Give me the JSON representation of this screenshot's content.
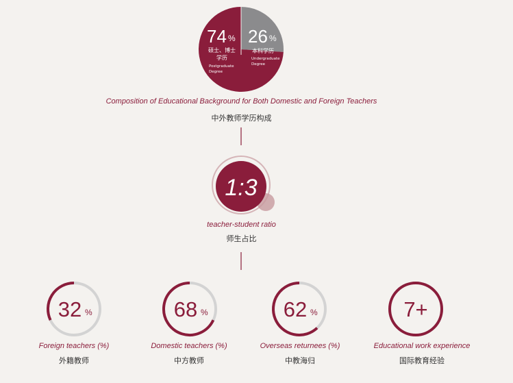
{
  "colors": {
    "accent": "#8a1d3b",
    "accent_light": "#c79a9f",
    "gray": "#8b8b8d",
    "ring_track": "#d3d3d3",
    "text": "#333333",
    "background": "#f4f2ef"
  },
  "chart_data": [
    {
      "type": "pie",
      "slices": [
        {
          "value": 74,
          "label": "74",
          "unit": "%",
          "name_zh": "硕士、博士学历",
          "name_en": "Postgraduate Degree",
          "color": "#8a1d3b"
        },
        {
          "value": 26,
          "label": "26",
          "unit": "%",
          "name_zh": "本科学历",
          "name_en": "Undergraduate Degree",
          "color": "#8b8b8d"
        }
      ],
      "caption_en": "Composition of Educational Background for Both Domestic and Foreign Teachers",
      "caption_zh": "中外教师学历构成"
    },
    {
      "type": "ratio",
      "value": "1:3",
      "caption_en": "teacher-student ratio",
      "caption_zh": "师生占比"
    },
    {
      "type": "gauge",
      "items": [
        {
          "value": 32,
          "label": "32",
          "unit": "%",
          "caption_en": "Foreign teachers (%)",
          "caption_zh": "外籍教师"
        },
        {
          "value": 68,
          "label": "68",
          "unit": "%",
          "caption_en": "Domestic teachers (%)",
          "caption_zh": "中方教师"
        },
        {
          "value": 62,
          "label": "62",
          "unit": "%",
          "caption_en": "Overseas returnees (%)",
          "caption_zh": "中教海归"
        },
        {
          "value": 100,
          "label": "7+",
          "unit": "",
          "caption_en": "Educational work experience",
          "caption_zh": "国际教育经验"
        }
      ]
    }
  ]
}
